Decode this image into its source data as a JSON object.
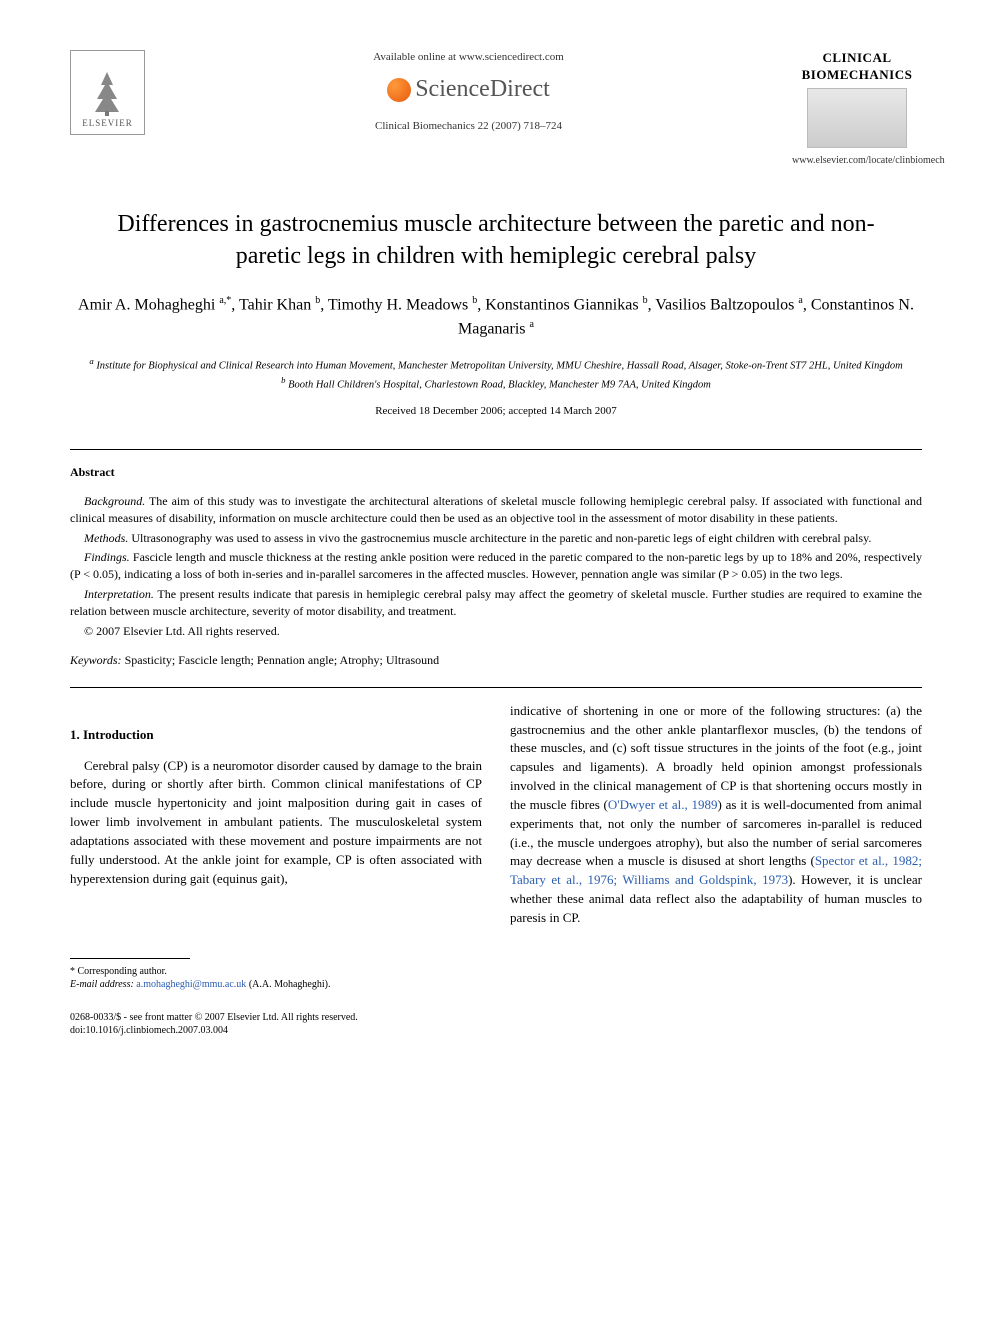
{
  "header": {
    "publisher_logo_text": "ELSEVIER",
    "available_text": "Available online at www.sciencedirect.com",
    "sciencedirect_text": "ScienceDirect",
    "citation_line": "Clinical Biomechanics 22 (2007) 718–724",
    "journal_name_line1": "CLINICAL",
    "journal_name_line2": "BIOMECHANICS",
    "locate_url": "www.elsevier.com/locate/clinbiomech"
  },
  "title": "Differences in gastrocnemius muscle architecture between the paretic and non-paretic legs in children with hemiplegic cerebral palsy",
  "authors_html": "Amir A. Mohagheghi <sup>a,*</sup>, Tahir Khan <sup>b</sup>, Timothy H. Meadows <sup>b</sup>, Konstantinos Giannikas <sup>b</sup>, Vasilios Baltzopoulos <sup>a</sup>, Constantinos N. Maganaris <sup>a</sup>",
  "affiliations": {
    "a": "Institute for Biophysical and Clinical Research into Human Movement, Manchester Metropolitan University, MMU Cheshire, Hassall Road, Alsager, Stoke-on-Trent ST7 2HL, United Kingdom",
    "b": "Booth Hall Children's Hospital, Charlestown Road, Blackley, Manchester M9 7AA, United Kingdom"
  },
  "dates": "Received 18 December 2006; accepted 14 March 2007",
  "abstract": {
    "heading": "Abstract",
    "background_label": "Background.",
    "background": " The aim of this study was to investigate the architectural alterations of skeletal muscle following hemiplegic cerebral palsy. If associated with functional and clinical measures of disability, information on muscle architecture could then be used as an objective tool in the assessment of motor disability in these patients.",
    "methods_label": "Methods.",
    "methods": " Ultrasonography was used to assess in vivo the gastrocnemius muscle architecture in the paretic and non-paretic legs of eight children with cerebral palsy.",
    "findings_label": "Findings.",
    "findings": " Fascicle length and muscle thickness at the resting ankle position were reduced in the paretic compared to the non-paretic legs by up to 18% and 20%, respectively (P < 0.05), indicating a loss of both in-series and in-parallel sarcomeres in the affected muscles. However, pennation angle was similar (P > 0.05) in the two legs.",
    "interpretation_label": "Interpretation.",
    "interpretation": " The present results indicate that paresis in hemiplegic cerebral palsy may affect the geometry of skeletal muscle. Further studies are required to examine the relation between muscle architecture, severity of motor disability, and treatment.",
    "copyright": "© 2007 Elsevier Ltd. All rights reserved."
  },
  "keywords": {
    "label": "Keywords:",
    "list": " Spasticity; Fascicle length; Pennation angle; Atrophy; Ultrasound"
  },
  "intro": {
    "heading": "1. Introduction",
    "p1": "Cerebral palsy (CP) is a neuromotor disorder caused by damage to the brain before, during or shortly after birth. Common clinical manifestations of CP include muscle hypertonicity and joint malposition during gait in cases of lower limb involvement in ambulant patients. The musculoskeletal system adaptations associated with these movement and posture impairments are not fully understood. At the ankle joint for example, CP is often associated with hyperextension during gait (equinus gait),",
    "p2a": "indicative of shortening in one or more of the following structures: (a) the gastrocnemius and the other ankle plantarflexor muscles, (b) the tendons of these muscles, and (c) soft tissue structures in the joints of the foot (e.g., joint capsules and ligaments). A broadly held opinion amongst professionals involved in the clinical management of CP is that shortening occurs mostly in the muscle fibres (",
    "ref1": "O'Dwyer et al., 1989",
    "p2b": ") as it is well-documented from animal experiments that, not only the number of sarcomeres in-parallel is reduced (i.e., the muscle undergoes atrophy), but also the number of serial sarcomeres may decrease when a muscle is disused at short lengths (",
    "ref2": "Spector et al., 1982; Tabary et al., 1976; Williams and Goldspink, 1973",
    "p2c": "). However, it is unclear whether these animal data reflect also the adaptability of human muscles to paresis in CP."
  },
  "footnote": {
    "corr_label": "* Corresponding author.",
    "email_label": "E-mail address:",
    "email": "a.mohagheghi@mmu.ac.uk",
    "email_suffix": " (A.A. Mohagheghi)."
  },
  "footer": {
    "line1": "0268-0033/$ - see front matter © 2007 Elsevier Ltd. All rights reserved.",
    "line2": "doi:10.1016/j.clinbiomech.2007.03.004"
  },
  "colors": {
    "ref_link": "#2a5db0",
    "text": "#000000",
    "bg": "#ffffff"
  }
}
